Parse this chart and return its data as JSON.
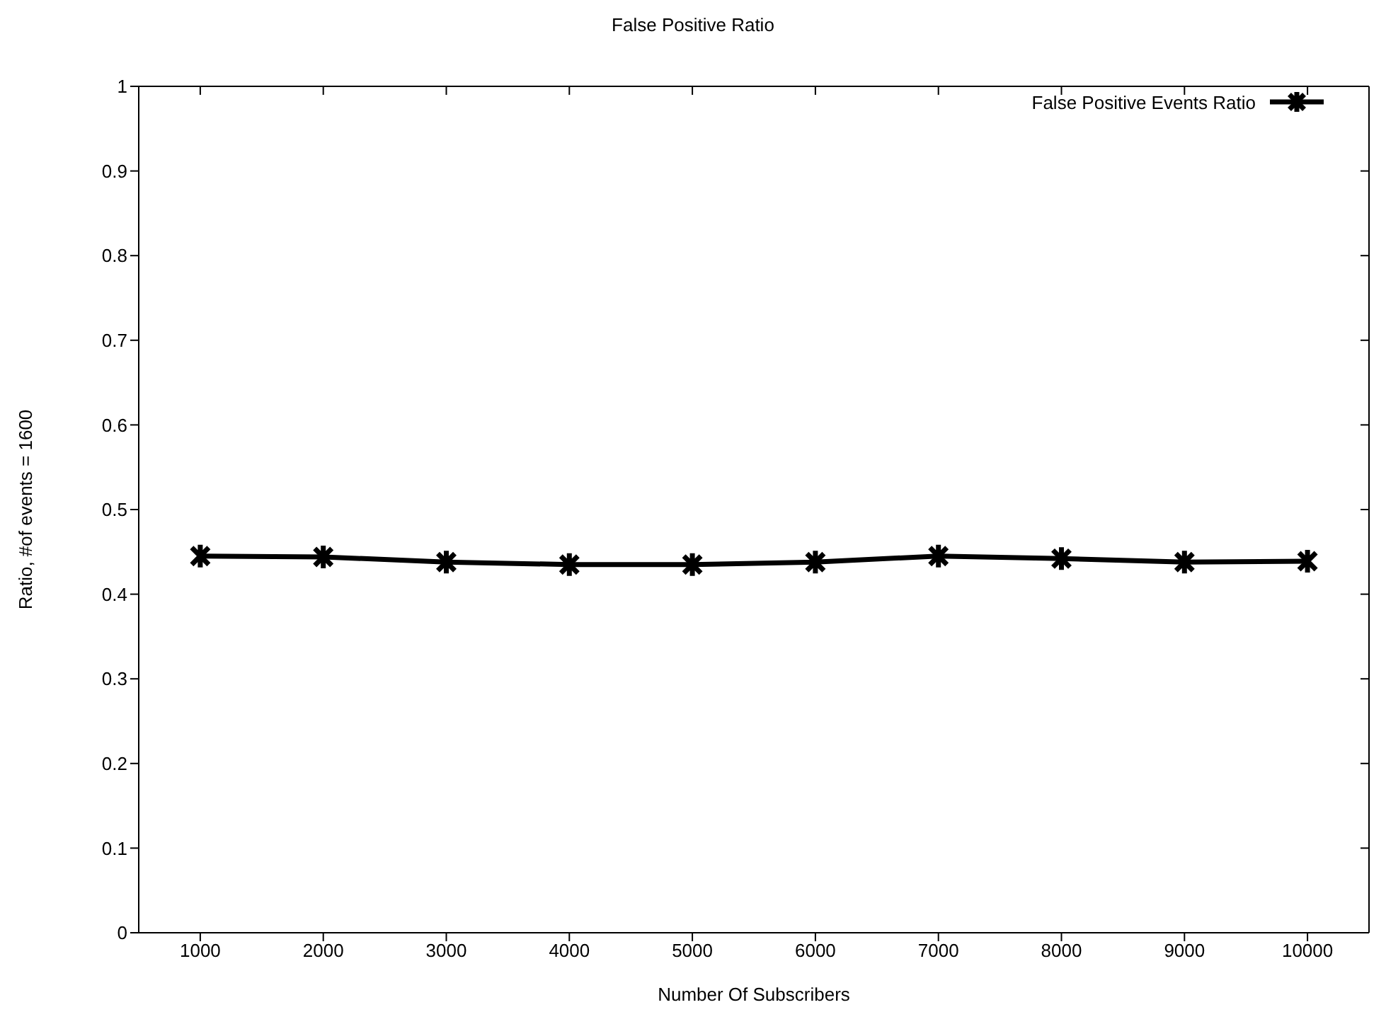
{
  "chart_data": {
    "type": "line",
    "title": "False Positive Ratio",
    "xlabel": "Number Of Subscribers",
    "ylabel": "Ratio,  #of events = 1600",
    "x": [
      1000,
      2000,
      3000,
      4000,
      5000,
      6000,
      7000,
      8000,
      9000,
      10000
    ],
    "series": [
      {
        "name": "False Positive Events Ratio",
        "color": "#000000",
        "values": [
          0.445,
          0.444,
          0.438,
          0.435,
          0.435,
          0.438,
          0.445,
          0.442,
          0.438,
          0.439
        ]
      }
    ],
    "xlim": [
      500,
      10500
    ],
    "xticks": [
      1000,
      2000,
      3000,
      4000,
      5000,
      6000,
      7000,
      8000,
      9000,
      10000
    ],
    "ylim": [
      0,
      1
    ],
    "yticks": [
      0,
      0.1,
      0.2,
      0.3,
      0.4,
      0.5,
      0.6,
      0.7,
      0.8,
      0.9,
      1
    ],
    "grid": false,
    "legend": "top right",
    "marker": "cross",
    "line_style": "solid"
  }
}
